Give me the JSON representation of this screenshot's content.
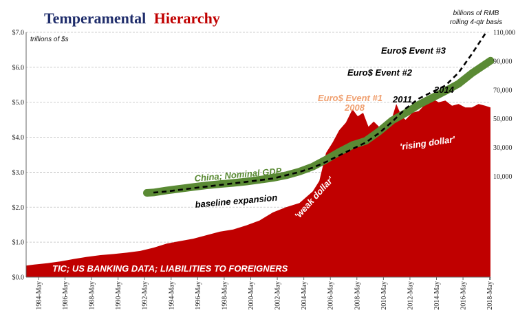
{
  "chart_data": {
    "type": "area",
    "title_part1": "Temperamental",
    "title_part2": "Hierarchy",
    "left_unit": "trillions of $s",
    "right_unit_line1": "billions of RMB",
    "right_unit_line2": "rolling 4-qtr basis",
    "left_ticks": [
      "$0.0",
      "$1.0",
      "$2.0",
      "$3.0",
      "$4.0",
      "$5.0",
      "$6.0",
      "$7.0"
    ],
    "left_ylim": [
      0,
      7
    ],
    "right_ticks": [
      "10,000",
      "30,000",
      "50,000",
      "70,000",
      "90,000",
      "110,000"
    ],
    "right_ylim": [
      -60000,
      110000
    ],
    "x_ticks": [
      "1984-May",
      "1986-May",
      "1988-May",
      "1990-May",
      "1992-May",
      "1994-May",
      "1996-May",
      "1998-May",
      "2000-May",
      "2002-May",
      "2004-May",
      "2006-May",
      "2008-May",
      "2010-May",
      "2012-May",
      "2014-May",
      "2016-May",
      "2018-May"
    ],
    "xlim": [
      1983.4,
      2018.4
    ],
    "grid": true,
    "series": [
      {
        "name": "TIC; US BANKING DATA; LIABILITIES TO FOREIGNERS",
        "axis": "left",
        "color": "#c00000",
        "x": [
          1983.4,
          1984,
          1985,
          1986,
          1987,
          1988,
          1989,
          1990,
          1991,
          1992,
          1993,
          1994,
          1995,
          1996,
          1997,
          1998,
          1999,
          2000,
          2001,
          2002,
          2003,
          2004,
          2005,
          2005.5,
          2006,
          2006.5,
          2007,
          2007.5,
          2008,
          2008.4,
          2008.8,
          2009.2,
          2009.6,
          2010,
          2010.5,
          2011,
          2011.3,
          2011.7,
          2012,
          2012.5,
          2013,
          2013.5,
          2014,
          2014.5,
          2015,
          2015.5,
          2016,
          2016.5,
          2017,
          2017.5,
          2018,
          2018.4
        ],
        "values": [
          0.33,
          0.36,
          0.4,
          0.45,
          0.52,
          0.58,
          0.63,
          0.66,
          0.7,
          0.75,
          0.84,
          0.96,
          1.03,
          1.1,
          1.2,
          1.3,
          1.36,
          1.48,
          1.62,
          1.85,
          2.0,
          2.12,
          2.45,
          2.75,
          3.55,
          3.85,
          4.2,
          4.42,
          4.8,
          4.6,
          4.7,
          4.3,
          4.45,
          4.3,
          4.4,
          4.58,
          4.95,
          4.6,
          4.5,
          4.7,
          4.75,
          4.95,
          5.1,
          5.0,
          5.05,
          4.9,
          4.95,
          4.85,
          4.85,
          4.95,
          4.9,
          4.85
        ]
      },
      {
        "name": "China; Nominal GDP",
        "axis": "right",
        "color": "#5a8a34",
        "x": [
          1992.5,
          1993,
          1994,
          1995,
          1996,
          1997,
          1998,
          1999,
          2000,
          2001,
          2002,
          2003,
          2004,
          2005,
          2006,
          2007,
          2008,
          2009,
          2010,
          2011,
          2012,
          2013,
          2014,
          2015,
          2016,
          2017,
          2018.4
        ],
        "values": [
          -1500,
          -1200,
          200,
          1400,
          2600,
          3700,
          4600,
          5400,
          6400,
          7600,
          8900,
          10700,
          13300,
          16700,
          21600,
          26900,
          31700,
          34600,
          41200,
          48900,
          54000,
          59800,
          64500,
          69200,
          74300,
          81600,
          90300
        ]
      },
      {
        "name": "",
        "axis": "right",
        "color": "#000000",
        "style": "dashed",
        "x": [
          1993,
          1994,
          1996,
          1998,
          2000,
          2002,
          2004,
          2005,
          2006,
          2007,
          2008,
          2009,
          2010,
          2011,
          2012,
          2013,
          2014,
          2015,
          2016,
          2017,
          2018
        ],
        "values": [
          -1300,
          -500,
          1800,
          4000,
          6200,
          8500,
          13000,
          16000,
          20000,
          24500,
          29000,
          33500,
          40000,
          48000,
          57000,
          64000,
          68500,
          73000,
          82000,
          95000,
          109000
        ]
      }
    ],
    "annotations": [
      {
        "text": "China; Nominal GDP",
        "color": "#5a8a34"
      },
      {
        "text": "baseline expansion",
        "color": "#000000"
      },
      {
        "text": "'weak dollar'",
        "color": "#ffffff"
      },
      {
        "text": "'rising dollar'",
        "color": "#ffffff"
      },
      {
        "text": "Euro$ Event #1",
        "color": "#f0a070"
      },
      {
        "text": "2008",
        "color": "#f0a070"
      },
      {
        "text": "Euro$ Event #2",
        "color": "#000000"
      },
      {
        "text": "Euro$ Event #3",
        "color": "#000000"
      },
      {
        "text": "2011",
        "color": "#000000"
      },
      {
        "text": "2014",
        "color": "#000000"
      },
      {
        "text": "TIC; US BANKING DATA; LIABILITIES TO FOREIGNERS",
        "color": "#ffffff"
      }
    ]
  }
}
